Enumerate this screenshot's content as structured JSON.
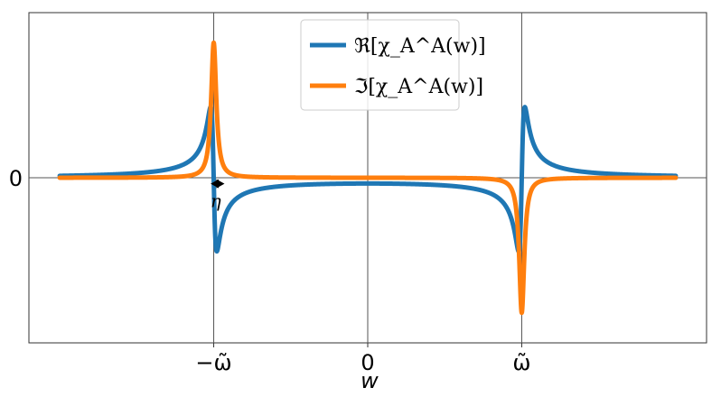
{
  "chart_data": {
    "type": "line",
    "title": "",
    "xlabel": "w",
    "ylabel": "",
    "xlim": [
      -2.2,
      2.2
    ],
    "ylim": [
      -1.1,
      1.1
    ],
    "omega": 1.0,
    "eta": 0.02,
    "xticks": [
      {
        "value": -1.0,
        "label": "−ω̃"
      },
      {
        "value": 0.0,
        "label": "0"
      },
      {
        "value": 1.0,
        "label": "ω̃"
      }
    ],
    "yticks": [
      {
        "value": 0.0,
        "label": "0"
      }
    ],
    "grid": true,
    "legend_position": "top-center",
    "series": [
      {
        "name": "ℜ[χ_A^A(w)]",
        "part": "real",
        "color": "#1f77b4"
      },
      {
        "name": "ℑ[χ_A^A(w)]",
        "part": "imag",
        "color": "#ff7f0e"
      }
    ],
    "annotations": [
      {
        "text": "η",
        "type": "double-arrow",
        "x_from": -1.02,
        "x_to": -0.93,
        "y": -0.04
      }
    ]
  }
}
